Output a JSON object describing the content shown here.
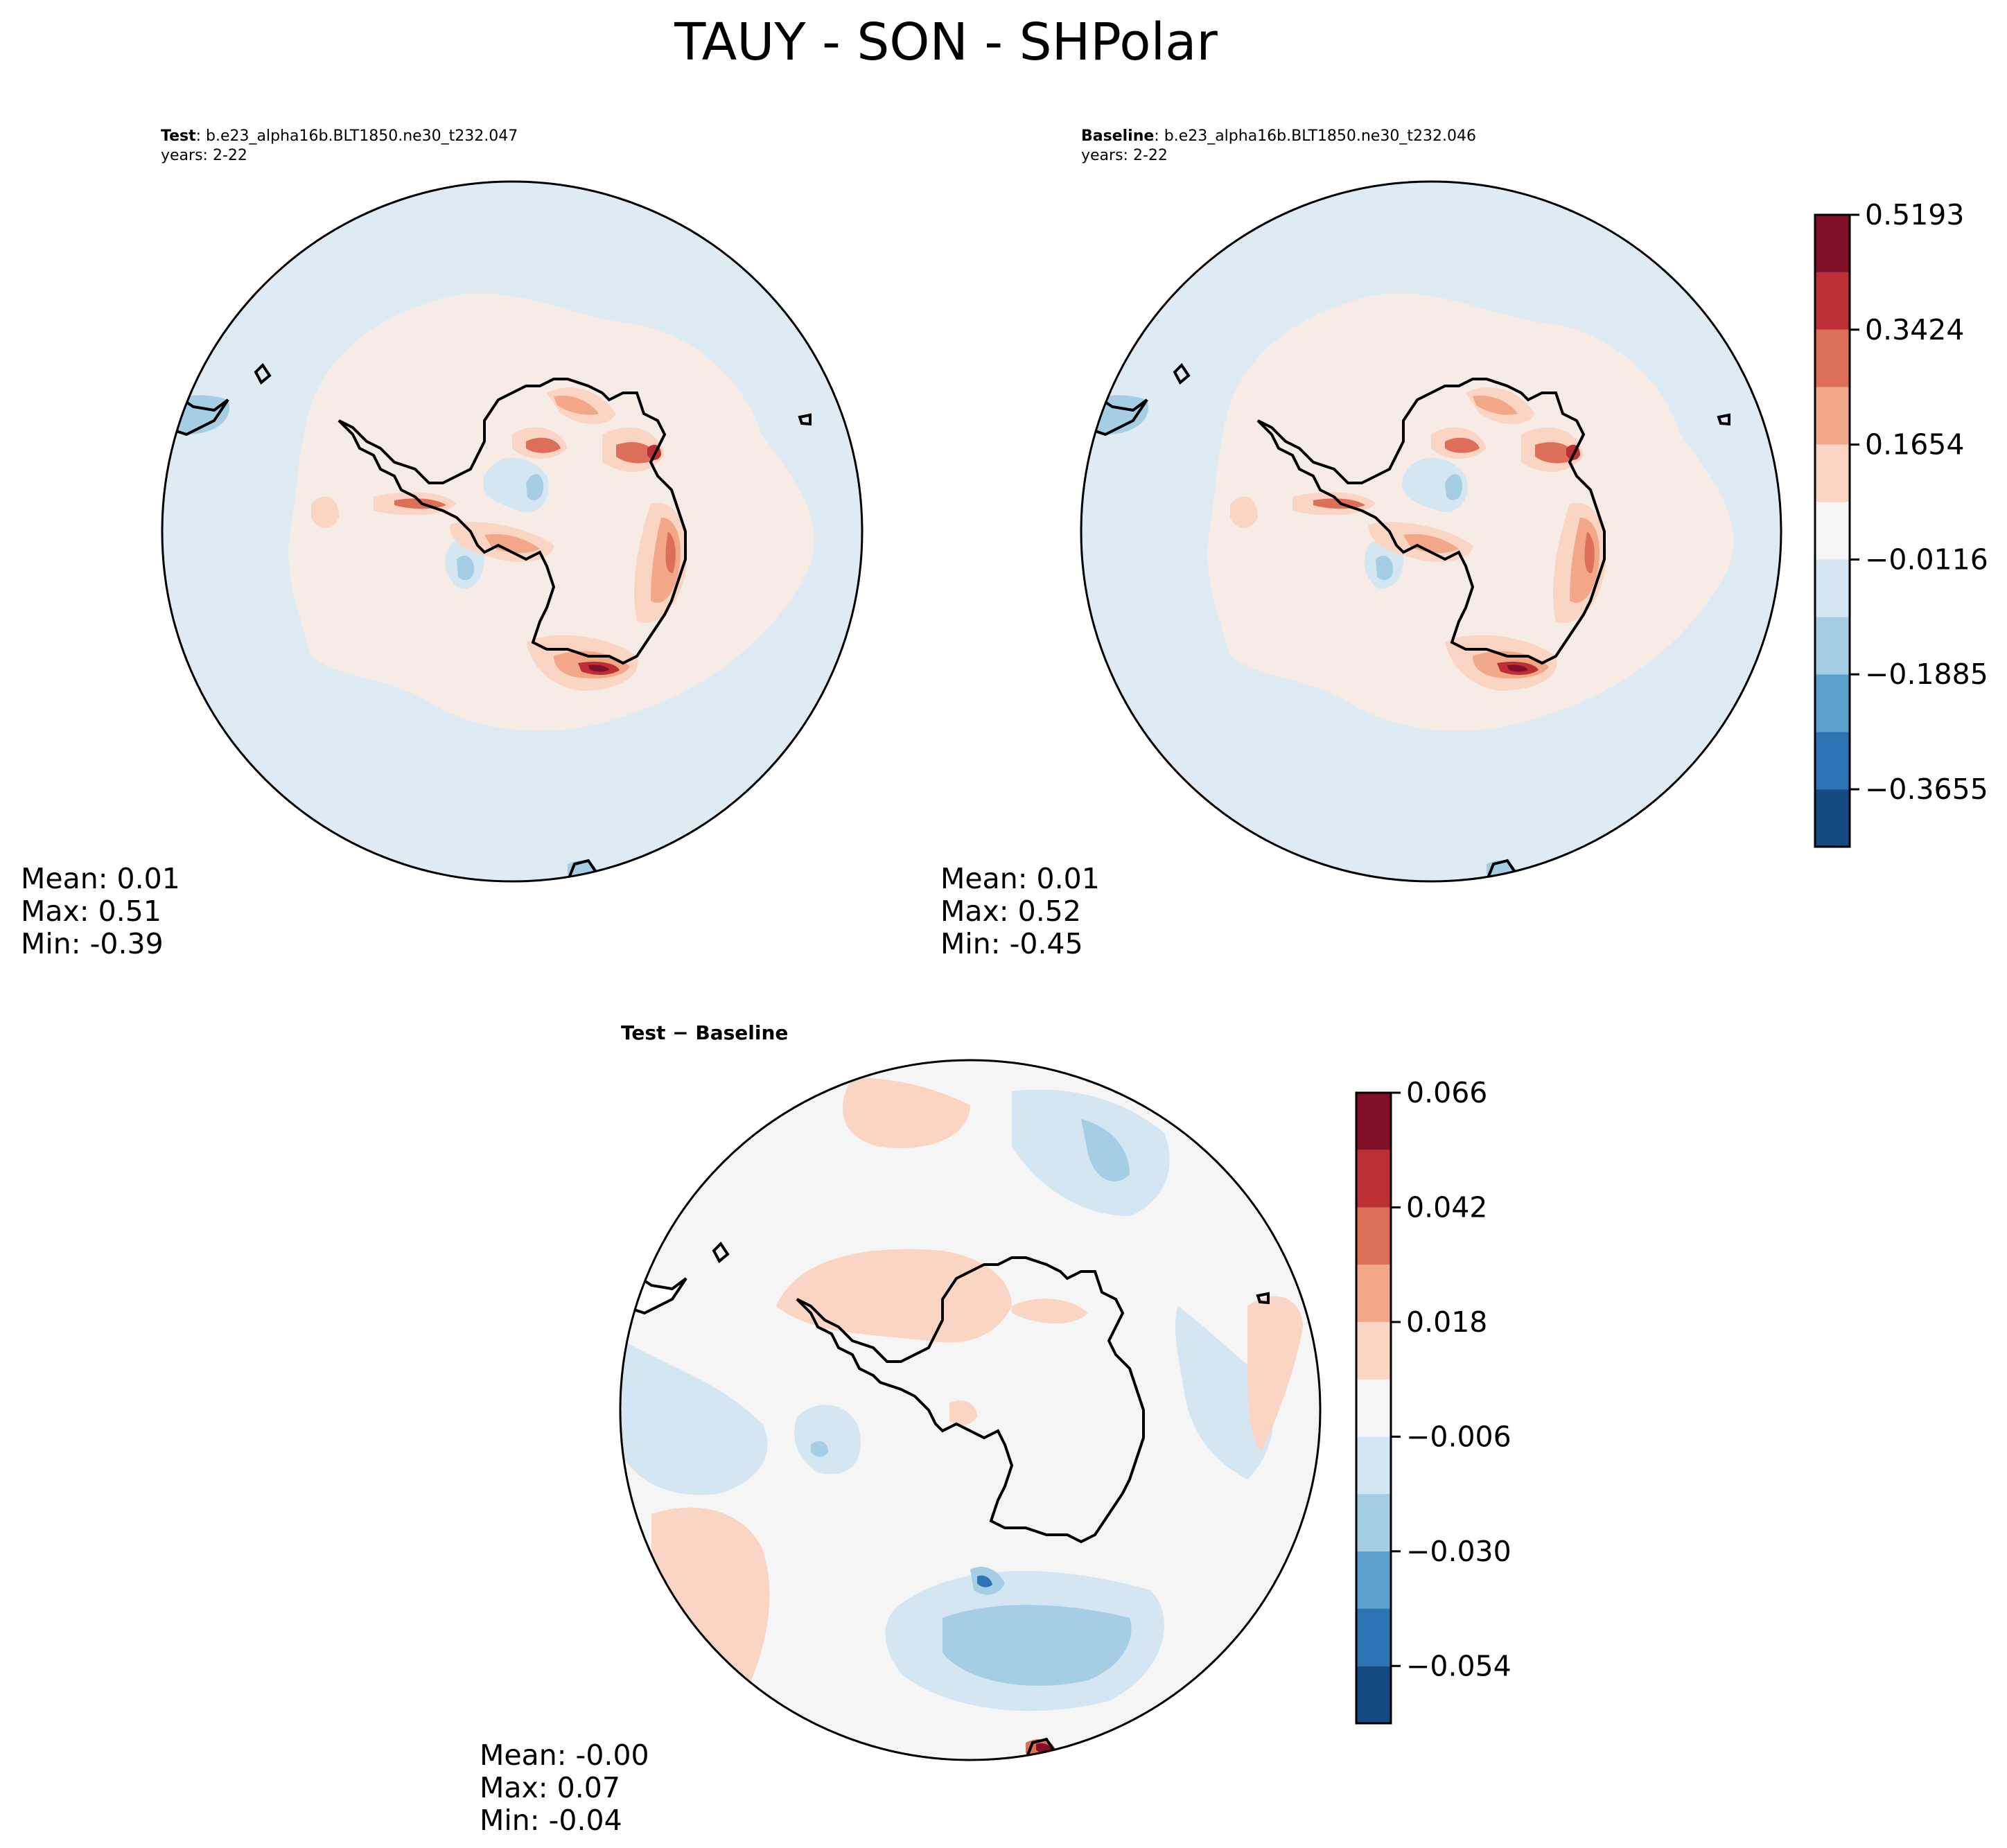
{
  "figure": {
    "title": "TAUY - SON - SHPolar"
  },
  "chart_data": [
    {
      "type": "heatmap",
      "subtype": "polar-stereographic-contour",
      "panel": "test",
      "title_bold": "Test",
      "title_text": ": b.e23_alpha16b.BLT1850.ne30_t232.047",
      "years": "years: 2-22",
      "stats": {
        "mean": "Mean:  0.01",
        "max": "Max:  0.51",
        "min": "Min: -0.39"
      },
      "levels": [
        -0.454,
        -0.3655,
        -0.277,
        -0.1885,
        -0.1001,
        -0.0116,
        0.077,
        0.1654,
        0.2539,
        0.3424,
        0.4308,
        0.5193
      ]
    },
    {
      "type": "heatmap",
      "subtype": "polar-stereographic-contour",
      "panel": "baseline",
      "title_bold": "Baseline",
      "title_text": ": b.e23_alpha16b.BLT1850.ne30_t232.046",
      "years": "years: 2-22",
      "stats": {
        "mean": "Mean:  0.01",
        "max": "Max:  0.52",
        "min": "Min: -0.45"
      },
      "colorbar": {
        "levels": [
          -0.454,
          -0.3655,
          -0.277,
          -0.1885,
          -0.1001,
          -0.0116,
          0.077,
          0.1654,
          0.2539,
          0.3424,
          0.4308,
          0.5193
        ],
        "tick_labels": [
          "0.5193",
          "0.3424",
          "0.1654",
          "−0.0116",
          "−0.1885",
          "−0.3655"
        ]
      }
    },
    {
      "type": "heatmap",
      "subtype": "polar-stereographic-contour",
      "panel": "difference",
      "title": "Test − Baseline",
      "stats": {
        "mean": "Mean: -0.00",
        "max": "Max:  0.07",
        "min": "Min: -0.04"
      },
      "colorbar": {
        "levels": [
          -0.066,
          -0.054,
          -0.042,
          -0.03,
          -0.018,
          -0.006,
          0.006,
          0.018,
          0.03,
          0.042,
          0.054,
          0.066
        ],
        "tick_labels": [
          "0.066",
          "0.042",
          "0.018",
          "−0.006",
          "−0.030",
          "−0.054"
        ]
      }
    }
  ],
  "colors": {
    "ocean_main": "#deebf3",
    "land_pos": "#f7ebe5",
    "diff_bg": "#f5f5f5",
    "colormap": [
      "#164a82",
      "#2d74b5",
      "#5aa2cd",
      "#a5cde3",
      "#d4e6f1",
      "#f5f5f5",
      "#fad5c3",
      "#f2a888",
      "#dd6e58",
      "#bc2f34",
      "#800f27"
    ]
  }
}
